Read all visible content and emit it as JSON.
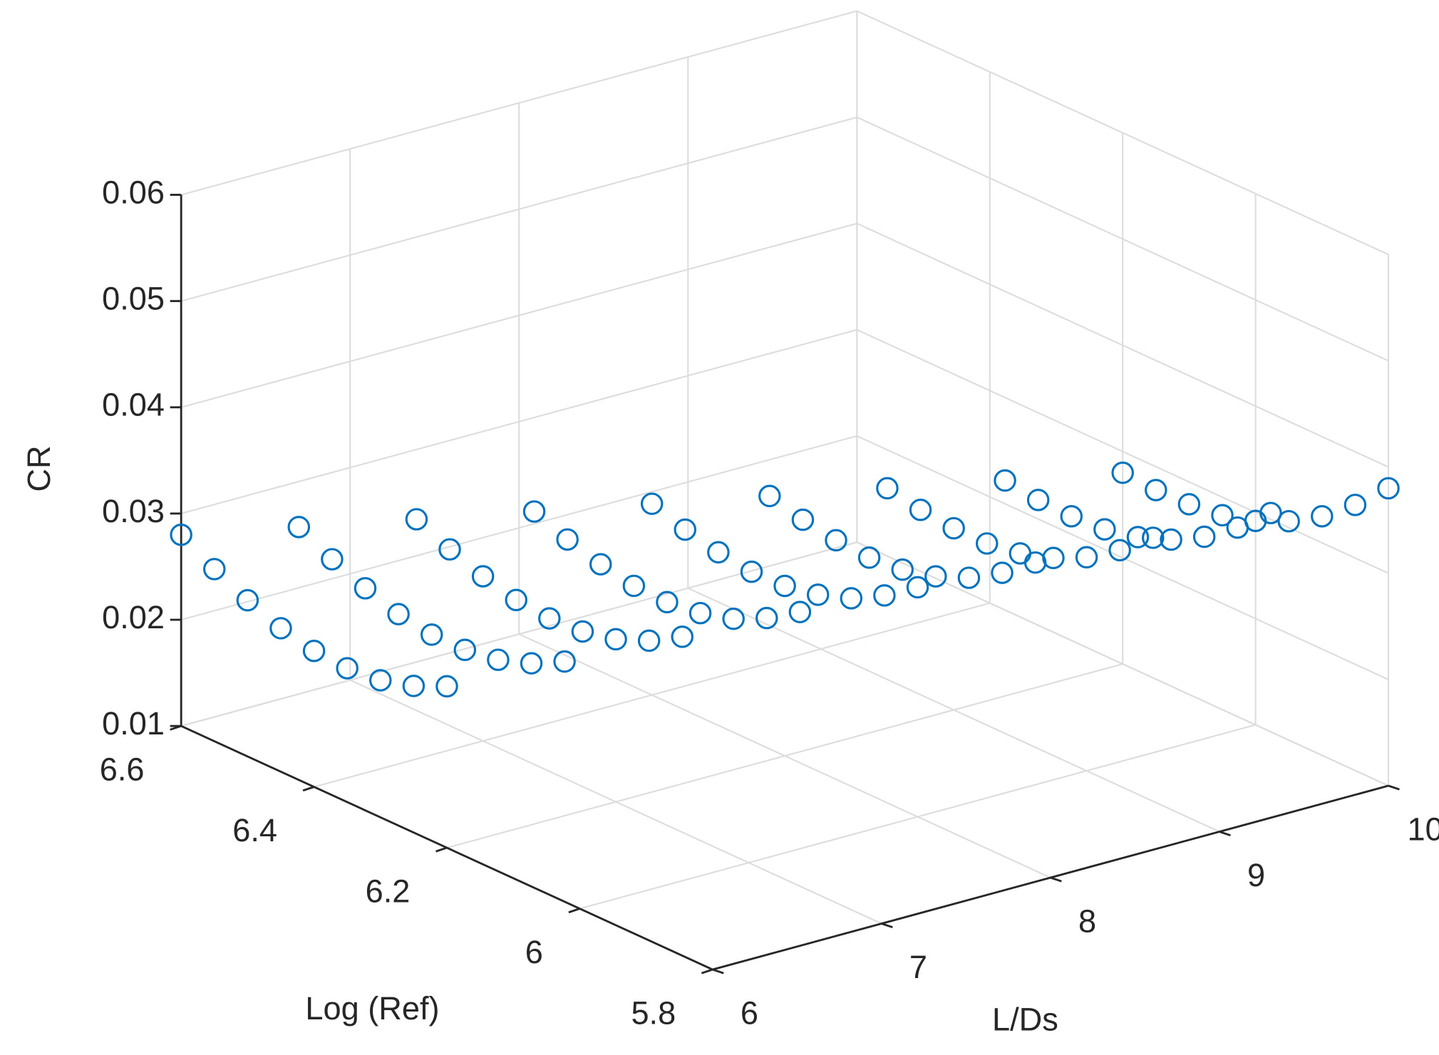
{
  "chart_data": {
    "type": "scatter3d",
    "xlabel": "L/Ds",
    "ylabel": "Log (Ref)",
    "zlabel": "CR",
    "xlim": [
      6,
      10
    ],
    "ylim": [
      5.8,
      6.6
    ],
    "zlim": [
      0.01,
      0.06
    ],
    "xticks": [
      6,
      7,
      8,
      9,
      10
    ],
    "yticks": [
      5.8,
      6,
      6.2,
      6.4,
      6.6
    ],
    "zticks": [
      0.01,
      0.02,
      0.03,
      0.04,
      0.05,
      0.06
    ],
    "grid": true,
    "series": [
      {
        "color": "#0072BD",
        "x": [
          6,
          6,
          6,
          6,
          6,
          6,
          6,
          6,
          6,
          6.5,
          6.5,
          6.5,
          6.5,
          6.5,
          6.5,
          6.5,
          6.5,
          6.5,
          7,
          7,
          7,
          7,
          7,
          7,
          7,
          7,
          7,
          7.5,
          7.5,
          7.5,
          7.5,
          7.5,
          7.5,
          7.5,
          7.5,
          7.5,
          8,
          8,
          8,
          8,
          8,
          8,
          8,
          8,
          8,
          8.5,
          8.5,
          8.5,
          8.5,
          8.5,
          8.5,
          8.5,
          8.5,
          8.5,
          9,
          9,
          9,
          9,
          9,
          9,
          9,
          9,
          9,
          9.5,
          9.5,
          9.5,
          9.5,
          9.5,
          9.5,
          9.5,
          9.5,
          9.5,
          10,
          10,
          10,
          10,
          10,
          10,
          10,
          10,
          10
        ],
        "y": [
          6.6,
          6.55,
          6.5,
          6.45,
          6.4,
          6.35,
          6.3,
          6.25,
          6.2,
          6.55,
          6.5,
          6.45,
          6.4,
          6.35,
          6.3,
          6.25,
          6.2,
          6.15,
          6.5,
          6.45,
          6.4,
          6.35,
          6.3,
          6.25,
          6.2,
          6.15,
          6.1,
          6.45,
          6.4,
          6.35,
          6.3,
          6.25,
          6.2,
          6.15,
          6.1,
          6.05,
          6.4,
          6.35,
          6.3,
          6.25,
          6.2,
          6.15,
          6.1,
          6.05,
          6.0,
          6.35,
          6.3,
          6.25,
          6.2,
          6.15,
          6.1,
          6.05,
          6.0,
          5.95,
          6.3,
          6.25,
          6.2,
          6.15,
          6.1,
          6.05,
          6.0,
          5.95,
          5.9,
          6.25,
          6.2,
          6.15,
          6.1,
          6.05,
          6.0,
          5.95,
          5.9,
          5.85,
          6.2,
          6.15,
          6.1,
          6.05,
          6.0,
          5.95,
          5.9,
          5.85,
          5.8
        ],
        "z": [
          0.028,
          0.0262,
          0.0247,
          0.0235,
          0.0228,
          0.0226,
          0.0229,
          0.0238,
          0.0252,
          0.028,
          0.0264,
          0.0251,
          0.0241,
          0.0236,
          0.0236,
          0.0241,
          0.0252,
          0.0268,
          0.028,
          0.0266,
          0.0255,
          0.0247,
          0.0244,
          0.0246,
          0.0253,
          0.0266,
          0.0284,
          0.028,
          0.0268,
          0.0259,
          0.0253,
          0.0252,
          0.0256,
          0.0265,
          0.028,
          0.03,
          0.028,
          0.027,
          0.0263,
          0.0259,
          0.026,
          0.0266,
          0.0277,
          0.0294,
          0.0316,
          0.028,
          0.0272,
          0.0267,
          0.0265,
          0.0268,
          0.0276,
          0.0289,
          0.0308,
          0.0332,
          0.028,
          0.0274,
          0.0271,
          0.0271,
          0.0276,
          0.0286,
          0.0301,
          0.0322,
          0.0348,
          0.028,
          0.0276,
          0.0275,
          0.0277,
          0.0284,
          0.0296,
          0.0313,
          0.0336,
          0.0364,
          0.028,
          0.0278,
          0.0279,
          0.0283,
          0.0292,
          0.0306,
          0.0325,
          0.035,
          0.038
        ]
      }
    ]
  }
}
